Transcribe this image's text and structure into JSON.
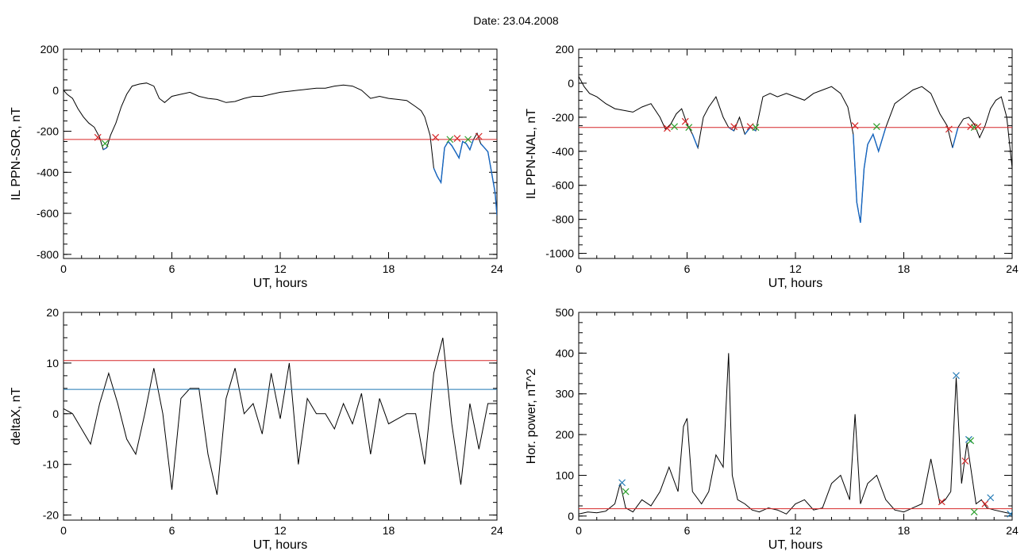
{
  "title": "Date:  23.04.2008",
  "chart_data": [
    {
      "type": "line",
      "xlabel": "UT, hours",
      "ylabel": "IL PPN-SOR, nT",
      "xlim": [
        0,
        24
      ],
      "ylim": [
        -820,
        200
      ],
      "xticks": [
        0,
        6,
        12,
        18,
        24
      ],
      "yticks": [
        200,
        0,
        -200,
        -400,
        -600,
        -800
      ],
      "threshold": -240,
      "threshold_color": "#d62728",
      "line_color": "#000000",
      "highlight_color": "#1565c0",
      "x": [
        0,
        0.2,
        0.5,
        0.8,
        1.1,
        1.4,
        1.7,
        2.0,
        2.2,
        2.4,
        2.6,
        2.9,
        3.2,
        3.5,
        3.8,
        4.2,
        4.6,
        5.0,
        5.3,
        5.6,
        6.0,
        6.5,
        7.0,
        7.5,
        8.0,
        8.5,
        9.0,
        9.5,
        10.0,
        10.5,
        11.0,
        11.5,
        12.0,
        12.5,
        13.0,
        13.5,
        14.0,
        14.5,
        15.0,
        15.5,
        16.0,
        16.5,
        17.0,
        17.5,
        18.0,
        18.5,
        19.0,
        19.5,
        19.8,
        20.0,
        20.3,
        20.5,
        20.7,
        20.9,
        21.1,
        21.3,
        21.5,
        21.7,
        21.9,
        22.1,
        22.3,
        22.5,
        22.7,
        22.9,
        23.1,
        23.3,
        23.5,
        23.7,
        23.9,
        24.0
      ],
      "y": [
        0,
        -20,
        -40,
        -90,
        -130,
        -160,
        -180,
        -230,
        -290,
        -280,
        -220,
        -160,
        -80,
        -20,
        20,
        30,
        35,
        20,
        -40,
        -60,
        -30,
        -20,
        -10,
        -30,
        -40,
        -45,
        -60,
        -55,
        -40,
        -30,
        -30,
        -20,
        -10,
        -5,
        0,
        5,
        10,
        10,
        20,
        25,
        20,
        0,
        -40,
        -30,
        -40,
        -45,
        -50,
        -80,
        -100,
        -130,
        -220,
        -380,
        -420,
        -450,
        -280,
        -250,
        -270,
        -300,
        -330,
        -250,
        -260,
        -290,
        -240,
        -210,
        -260,
        -280,
        -300,
        -400,
        -500,
        -610
      ],
      "markers": [
        {
          "x": 1.9,
          "y": -230,
          "color": "#d62728"
        },
        {
          "x": 2.3,
          "y": -260,
          "color": "#2ca02c"
        },
        {
          "x": 20.6,
          "y": -230,
          "color": "#d62728"
        },
        {
          "x": 21.4,
          "y": -240,
          "color": "#2ca02c"
        },
        {
          "x": 21.8,
          "y": -235,
          "color": "#d62728"
        },
        {
          "x": 22.4,
          "y": -240,
          "color": "#2ca02c"
        },
        {
          "x": 23.0,
          "y": -225,
          "color": "#d62728"
        }
      ]
    },
    {
      "type": "line",
      "xlabel": "UT, hours",
      "ylabel": "IL PPN-NAL, nT",
      "xlim": [
        0,
        24
      ],
      "ylim": [
        -1030,
        200
      ],
      "xticks": [
        0,
        6,
        12,
        18,
        24
      ],
      "yticks": [
        200,
        0,
        -200,
        -400,
        -600,
        -800,
        -1000
      ],
      "threshold": -260,
      "threshold_color": "#d62728",
      "line_color": "#000000",
      "highlight_color": "#1565c0",
      "x": [
        0,
        0.3,
        0.6,
        1.0,
        1.5,
        2.0,
        2.5,
        3.0,
        3.5,
        4.0,
        4.5,
        4.8,
        5.1,
        5.4,
        5.7,
        6.0,
        6.3,
        6.6,
        6.9,
        7.2,
        7.6,
        8.0,
        8.3,
        8.6,
        8.9,
        9.2,
        9.5,
        9.8,
        10.2,
        10.6,
        11.0,
        11.5,
        12.0,
        12.5,
        13.0,
        13.5,
        14.0,
        14.5,
        14.9,
        15.2,
        15.4,
        15.6,
        15.8,
        16.0,
        16.3,
        16.6,
        17.0,
        17.5,
        18.0,
        18.5,
        19.0,
        19.5,
        20.0,
        20.4,
        20.7,
        21.0,
        21.3,
        21.6,
        21.9,
        22.2,
        22.5,
        22.8,
        23.1,
        23.4,
        23.7,
        24.0
      ],
      "y": [
        40,
        -20,
        -60,
        -80,
        -120,
        -150,
        -160,
        -170,
        -140,
        -120,
        -200,
        -270,
        -240,
        -180,
        -150,
        -240,
        -300,
        -380,
        -200,
        -140,
        -80,
        -200,
        -260,
        -280,
        -200,
        -300,
        -260,
        -280,
        -80,
        -60,
        -80,
        -60,
        -80,
        -100,
        -60,
        -40,
        -20,
        -60,
        -140,
        -300,
        -700,
        -820,
        -500,
        -360,
        -300,
        -400,
        -260,
        -120,
        -80,
        -40,
        -20,
        -60,
        -180,
        -250,
        -380,
        -260,
        -210,
        -200,
        -240,
        -320,
        -250,
        -150,
        -100,
        -80,
        -200,
        -500
      ],
      "markers": [
        {
          "x": 4.9,
          "y": -265,
          "color": "#d62728"
        },
        {
          "x": 5.3,
          "y": -255,
          "color": "#2ca02c"
        },
        {
          "x": 5.9,
          "y": -225,
          "color": "#d62728"
        },
        {
          "x": 6.1,
          "y": -260,
          "color": "#2ca02c"
        },
        {
          "x": 8.6,
          "y": -255,
          "color": "#d62728"
        },
        {
          "x": 9.5,
          "y": -255,
          "color": "#d62728"
        },
        {
          "x": 9.8,
          "y": -260,
          "color": "#2ca02c"
        },
        {
          "x": 15.3,
          "y": -250,
          "color": "#d62728"
        },
        {
          "x": 16.5,
          "y": -255,
          "color": "#2ca02c"
        },
        {
          "x": 20.5,
          "y": -270,
          "color": "#d62728"
        },
        {
          "x": 21.7,
          "y": -255,
          "color": "#d62728"
        },
        {
          "x": 21.9,
          "y": -260,
          "color": "#2ca02c"
        },
        {
          "x": 22.1,
          "y": -255,
          "color": "#d62728"
        }
      ]
    },
    {
      "type": "line",
      "xlabel": "UT, hours",
      "ylabel": "deltaX, nT",
      "xlim": [
        0,
        24
      ],
      "ylim": [
        -21,
        20
      ],
      "xticks": [
        0,
        6,
        12,
        18,
        24
      ],
      "yticks": [
        20,
        10,
        0,
        -10,
        -20
      ],
      "hlines": [
        {
          "y": 10.5,
          "color": "#d62728"
        },
        {
          "y": 4.8,
          "color": "#1f77b4"
        }
      ],
      "line_color": "#000000",
      "x": [
        0,
        0.5,
        1.0,
        1.5,
        2.0,
        2.5,
        3.0,
        3.5,
        4.0,
        4.5,
        5.0,
        5.5,
        6.0,
        6.5,
        7.0,
        7.5,
        8.0,
        8.5,
        9.0,
        9.5,
        10.0,
        10.5,
        11.0,
        11.5,
        12.0,
        12.5,
        13.0,
        13.5,
        14.0,
        14.5,
        15.0,
        15.5,
        16.0,
        16.5,
        17.0,
        17.5,
        18.0,
        18.5,
        19.0,
        19.5,
        20.0,
        20.5,
        21.0,
        21.5,
        22.0,
        22.5,
        23.0,
        23.5,
        24.0
      ],
      "y": [
        1,
        0,
        -3,
        -6,
        2,
        8,
        2,
        -5,
        -8,
        0,
        9,
        0,
        -15,
        3,
        5,
        5,
        -8,
        -16,
        3,
        9,
        0,
        2,
        -4,
        8,
        -1,
        10,
        -10,
        3,
        0,
        0,
        -3,
        2,
        -2,
        4,
        -8,
        3,
        -2,
        -1,
        0,
        0,
        -10,
        8,
        15,
        -2,
        -14,
        2,
        -7,
        2,
        2
      ]
    },
    {
      "type": "line",
      "xlabel": "UT, hours",
      "ylabel": "Hor. power, nT^2",
      "xlim": [
        0,
        24
      ],
      "ylim": [
        -10,
        500
      ],
      "xticks": [
        0,
        6,
        12,
        18,
        24
      ],
      "yticks": [
        500,
        400,
        300,
        200,
        100,
        0
      ],
      "threshold": 18,
      "threshold_color": "#d62728",
      "line_color": "#000000",
      "x": [
        0,
        0.5,
        1.0,
        1.5,
        2.0,
        2.3,
        2.6,
        3.0,
        3.5,
        4.0,
        4.5,
        5.0,
        5.5,
        5.8,
        6.0,
        6.3,
        6.8,
        7.2,
        7.6,
        8.0,
        8.3,
        8.5,
        8.8,
        9.2,
        9.6,
        10.0,
        10.5,
        11.0,
        11.5,
        12.0,
        12.5,
        13.0,
        13.5,
        14.0,
        14.5,
        15.0,
        15.3,
        15.6,
        16.0,
        16.5,
        17.0,
        17.5,
        18.0,
        18.5,
        19.0,
        19.5,
        20.0,
        20.3,
        20.6,
        20.9,
        21.2,
        21.5,
        21.7,
        22.0,
        22.3,
        22.6,
        23.0,
        23.5,
        24.0
      ],
      "y": [
        5,
        10,
        8,
        12,
        30,
        80,
        20,
        10,
        40,
        25,
        60,
        120,
        60,
        220,
        240,
        60,
        30,
        60,
        150,
        120,
        400,
        100,
        40,
        30,
        15,
        10,
        20,
        15,
        5,
        30,
        40,
        15,
        20,
        80,
        100,
        40,
        250,
        30,
        80,
        100,
        40,
        15,
        10,
        20,
        30,
        140,
        30,
        40,
        60,
        340,
        80,
        180,
        120,
        30,
        40,
        20,
        15,
        10,
        5
      ],
      "markers": [
        {
          "x": 2.4,
          "y": 82,
          "color": "#1f77b4"
        },
        {
          "x": 2.6,
          "y": 60,
          "color": "#2ca02c"
        },
        {
          "x": 20.1,
          "y": 35,
          "color": "#d62728"
        },
        {
          "x": 20.9,
          "y": 345,
          "color": "#1f77b4"
        },
        {
          "x": 21.4,
          "y": 135,
          "color": "#d62728"
        },
        {
          "x": 21.6,
          "y": 188,
          "color": "#1f77b4"
        },
        {
          "x": 21.7,
          "y": 185,
          "color": "#2ca02c"
        },
        {
          "x": 21.9,
          "y": 10,
          "color": "#2ca02c"
        },
        {
          "x": 22.5,
          "y": 30,
          "color": "#d62728"
        },
        {
          "x": 22.8,
          "y": 45,
          "color": "#1f77b4"
        },
        {
          "x": 23.9,
          "y": 5,
          "color": "#1f77b4"
        }
      ]
    }
  ]
}
